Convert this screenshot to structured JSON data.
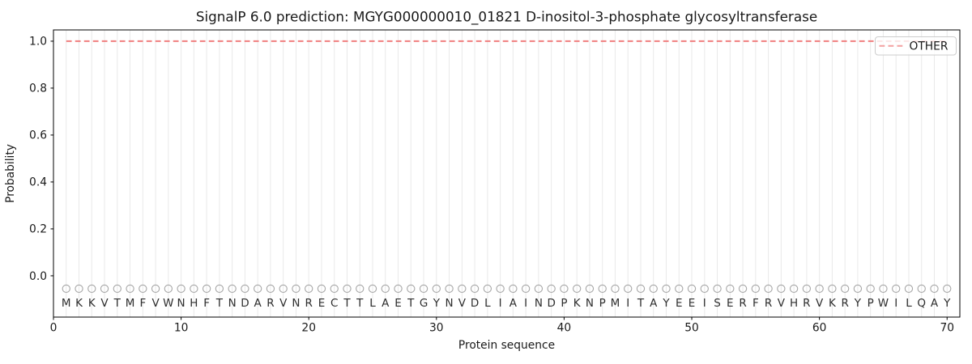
{
  "figure": {
    "title": "SignalP 6.0 prediction: MGYG000000010_01821 D-inositol-3-phosphate glycosyltransferase",
    "xlabel": "Protein sequence",
    "ylabel": "Probability"
  },
  "chart_data": {
    "type": "line",
    "title": "SignalP 6.0 prediction: MGYG000000010_01821 D-inositol-3-phosphate glycosyltransferase",
    "xlabel": "Protein sequence",
    "ylabel": "Probability",
    "xlim": [
      0,
      71
    ],
    "ylim": [
      -0.176,
      1.048
    ],
    "xticks": [
      0,
      10,
      20,
      30,
      40,
      50,
      60,
      70
    ],
    "yticks": [
      0.0,
      0.2,
      0.4,
      0.6,
      0.8,
      1.0
    ],
    "grid": "vertical gridline at every residue position",
    "legend_position": "upper right",
    "colors": {
      "other_line": "#f08080",
      "grid": "#e9e9e9",
      "marker": "#a6a6a6",
      "legend_border": "#cccccc"
    },
    "series": [
      {
        "name": "OTHER",
        "color": "#f08080",
        "linestyle": "dashed",
        "x": [
          1,
          2,
          3,
          4,
          5,
          6,
          7,
          8,
          9,
          10,
          11,
          12,
          13,
          14,
          15,
          16,
          17,
          18,
          19,
          20,
          21,
          22,
          23,
          24,
          25,
          26,
          27,
          28,
          29,
          30,
          31,
          32,
          33,
          34,
          35,
          36,
          37,
          38,
          39,
          40,
          41,
          42,
          43,
          44,
          45,
          46,
          47,
          48,
          49,
          50,
          51,
          52,
          53,
          54,
          55,
          56,
          57,
          58,
          59,
          60,
          61,
          62,
          63,
          64,
          65,
          66,
          67,
          68,
          69,
          70
        ],
        "y": [
          1.0,
          1.0,
          1.0,
          1.0,
          1.0,
          1.0,
          1.0,
          1.0,
          1.0,
          1.0,
          1.0,
          1.0,
          1.0,
          1.0,
          1.0,
          1.0,
          1.0,
          1.0,
          1.0,
          1.0,
          1.0,
          1.0,
          1.0,
          1.0,
          1.0,
          1.0,
          1.0,
          1.0,
          1.0,
          1.0,
          1.0,
          1.0,
          1.0,
          1.0,
          1.0,
          1.0,
          1.0,
          1.0,
          1.0,
          1.0,
          1.0,
          1.0,
          1.0,
          1.0,
          1.0,
          1.0,
          1.0,
          1.0,
          1.0,
          1.0,
          1.0,
          1.0,
          1.0,
          1.0,
          1.0,
          1.0,
          1.0,
          1.0,
          1.0,
          1.0,
          1.0,
          1.0,
          1.0,
          1.0,
          1.0,
          1.0,
          1.0,
          1.0,
          1.0,
          1.0
        ]
      }
    ],
    "sequence": "MKKVTMFVWNHFTNDARVNRECTTLAETGYNVDLIAINDPKNPMITAYEEISERFRVHRVKRYPWILQAY",
    "sequence_markers": {
      "symbol": "open-circle",
      "y_position": -0.055,
      "color": "#a6a6a6"
    }
  }
}
